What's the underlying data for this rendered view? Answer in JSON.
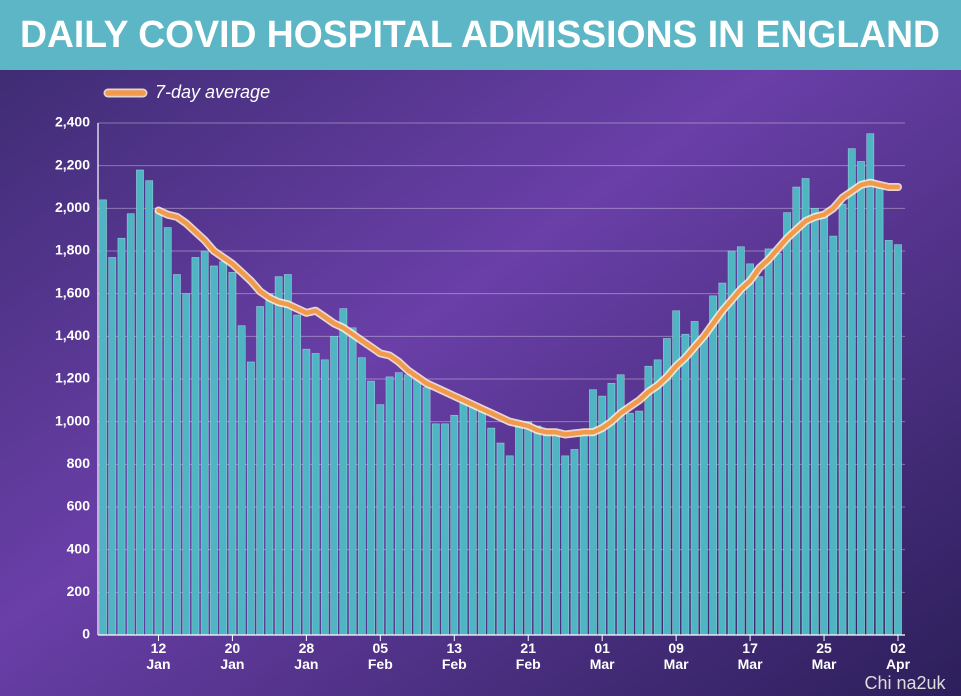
{
  "chart_data": {
    "type": "bar",
    "title": "DAILY COVID HOSPITAL ADMISSIONS IN ENGLAND",
    "annotation": "Chi na2uk",
    "categories": [
      null,
      null,
      null,
      null,
      null,
      null,
      "12 Jan",
      null,
      null,
      null,
      null,
      null,
      null,
      null,
      "20 Jan",
      null,
      null,
      null,
      null,
      null,
      null,
      null,
      "28 Jan",
      null,
      null,
      null,
      null,
      null,
      null,
      null,
      "05 Feb",
      null,
      null,
      null,
      null,
      null,
      null,
      null,
      "13 Feb",
      null,
      null,
      null,
      null,
      null,
      null,
      null,
      "21 Feb",
      null,
      null,
      null,
      null,
      null,
      null,
      null,
      "01 Mar",
      null,
      null,
      null,
      null,
      null,
      null,
      null,
      "09 Mar",
      null,
      null,
      null,
      null,
      null,
      null,
      null,
      "17 Mar",
      null,
      null,
      null,
      null,
      null,
      null,
      null,
      "25 Mar",
      null,
      null,
      null,
      null,
      null,
      null,
      null,
      "02 Apr"
    ],
    "values": [
      2040,
      1770,
      1860,
      1975,
      2180,
      2130,
      1990,
      1910,
      1690,
      1600,
      1770,
      1800,
      1730,
      1750,
      1700,
      1450,
      1280,
      1540,
      1600,
      1680,
      1690,
      1500,
      1340,
      1320,
      1290,
      1400,
      1530,
      1440,
      1300,
      1190,
      1080,
      1210,
      1230,
      1220,
      1200,
      1160,
      990,
      990,
      1030,
      1090,
      1070,
      1050,
      970,
      900,
      840,
      980,
      1000,
      980,
      960,
      940,
      840,
      870,
      960,
      1150,
      1120,
      1180,
      1220,
      1040,
      1050,
      1260,
      1290,
      1390,
      1520,
      1410,
      1470,
      1400,
      1590,
      1650,
      1800,
      1820,
      1740,
      1680,
      1810,
      1790,
      1980,
      2100,
      2140,
      2000,
      1980,
      1870,
      2020,
      2280,
      2220,
      2350,
      2100,
      1850,
      1830
    ],
    "color": "#4fb5c2",
    "series": [
      {
        "name": "7-day average",
        "color": "#f19a4a",
        "values": [
          null,
          null,
          null,
          null,
          null,
          null,
          1990,
          1970,
          1960,
          1930,
          1890,
          1850,
          1800,
          1770,
          1740,
          1700,
          1660,
          1610,
          1580,
          1560,
          1550,
          1530,
          1510,
          1520,
          1490,
          1460,
          1440,
          1410,
          1380,
          1350,
          1320,
          1310,
          1280,
          1240,
          1210,
          1180,
          1160,
          1140,
          1120,
          1100,
          1080,
          1060,
          1040,
          1020,
          1000,
          990,
          980,
          960,
          950,
          950,
          940,
          945,
          950,
          950,
          970,
          1000,
          1040,
          1070,
          1100,
          1140,
          1170,
          1210,
          1260,
          1300,
          1350,
          1400,
          1460,
          1520,
          1570,
          1620,
          1660,
          1720,
          1760,
          1810,
          1860,
          1900,
          1940,
          1960,
          1970,
          2000,
          2050,
          2080,
          2110,
          2120,
          2110,
          2100,
          2100
        ]
      }
    ],
    "ylim": [
      0,
      2400
    ],
    "yticks": [
      0,
      200,
      400,
      600,
      800,
      {
        "value": 1000,
        "label": "1,000"
      },
      {
        "value": 1200,
        "label": "1,200"
      },
      {
        "value": 1400,
        "label": "1,400"
      },
      {
        "value": 1600,
        "label": "1,600"
      },
      {
        "value": 1800,
        "label": "1,800"
      },
      {
        "value": 2000,
        "label": "2,000"
      },
      {
        "value": 2200,
        "label": "2,200"
      },
      {
        "value": 2400,
        "label": "2,400"
      }
    ],
    "grid": true,
    "legend": "top-left"
  }
}
